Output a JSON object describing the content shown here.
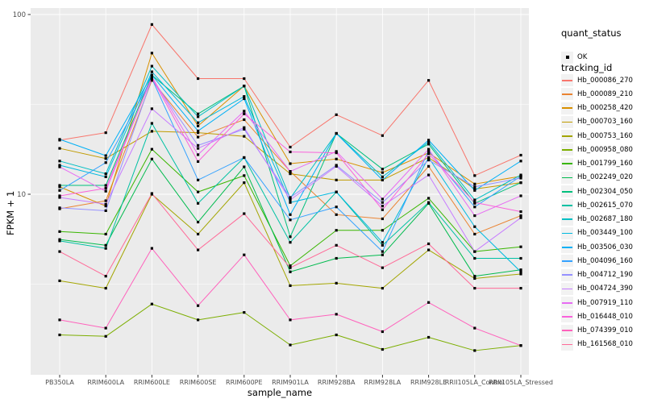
{
  "figure": {
    "background": "#FFFFFF",
    "panel_background": "#EBEBEB",
    "grid_color": "#FFFFFF",
    "axis_text_color": "#4D4D4D",
    "tick_color": "#333333",
    "ylabel": "FPKM + 1",
    "xlabel": "sample_name"
  },
  "legend": {
    "quant_title": "quant_status",
    "quant_items": [
      {
        "label": "OK",
        "marker": "black-square-point"
      }
    ],
    "tracking_title": "tracking_id"
  },
  "chart_data": {
    "type": "line",
    "title": "",
    "xlabel": "sample_name",
    "ylabel": "FPKM + 1",
    "yscale": "log10",
    "ylim": [
      1,
      110
    ],
    "y_ticks": [
      100,
      10
    ],
    "y_minor_ticks": [
      31.62,
      3.162
    ],
    "grid": true,
    "legend_position": "right",
    "marker": "small-black-square",
    "quant_status": "OK",
    "categories": [
      "PB350LA",
      "RRIM600LA",
      "RRIM600LE",
      "RRIM600SE",
      "RRIM600PE",
      "RRIM901LA",
      "RRIM928BA",
      "RRIM928LA",
      "RRIM928LE",
      "RRII105LA_Control",
      "RRII105LA_Stressed"
    ],
    "series": [
      {
        "name": "Hb_000086_270",
        "color": "#F8766D",
        "values": [
          20,
          22,
          88,
          44,
          44,
          18.3,
          27.7,
          21.2,
          43,
          12.7,
          16.5
        ]
      },
      {
        "name": "Hb_000089_210",
        "color": "#EA8331",
        "values": [
          8.3,
          9.2,
          43,
          20.8,
          26,
          13.4,
          7.7,
          7.3,
          14.3,
          6.0,
          7.6
        ]
      },
      {
        "name": "Hb_000258_420",
        "color": "#D89000",
        "values": [
          11,
          8.6,
          61,
          24,
          40,
          14.8,
          15.7,
          13.2,
          17,
          11.4,
          12.6
        ]
      },
      {
        "name": "Hb_000703_160",
        "color": "#C09B00",
        "values": [
          18,
          15.8,
          22.4,
          22,
          21,
          13.0,
          12.0,
          12.0,
          16,
          10.7,
          11.6
        ]
      },
      {
        "name": "Hb_000753_160",
        "color": "#A3A500",
        "values": [
          3.3,
          3.0,
          10,
          6.0,
          11.6,
          3.1,
          3.2,
          3.0,
          4.9,
          3.4,
          3.6
        ]
      },
      {
        "name": "Hb_000958_080",
        "color": "#7CAE00",
        "values": [
          1.65,
          1.62,
          2.45,
          2.0,
          2.2,
          1.45,
          1.65,
          1.37,
          1.6,
          1.35,
          1.44
        ]
      },
      {
        "name": "Hb_001799_160",
        "color": "#39B600",
        "values": [
          6.2,
          6.0,
          17.8,
          10.3,
          12.7,
          4.0,
          6.3,
          6.3,
          9.5,
          4.8,
          5.1
        ]
      },
      {
        "name": "Hb_002249_020",
        "color": "#00BB4E",
        "values": [
          5.6,
          5.2,
          15.7,
          7.0,
          14.2,
          3.7,
          4.4,
          4.6,
          8.9,
          3.5,
          3.8
        ]
      },
      {
        "name": "Hb_002304_050",
        "color": "#00BF7D",
        "values": [
          11.2,
          11.2,
          46,
          28,
          40,
          5.8,
          21.8,
          13.8,
          19,
          8.9,
          11.6
        ]
      },
      {
        "name": "Hb_002615_070",
        "color": "#00C1A3",
        "values": [
          5.5,
          5.0,
          24.8,
          8.9,
          16,
          5.4,
          10.3,
          5.2,
          9.0,
          4.4,
          4.4
        ]
      },
      {
        "name": "Hb_002687_180",
        "color": "#00BFC4",
        "values": [
          15.3,
          13.0,
          51.6,
          27,
          40,
          9.5,
          21.8,
          12.5,
          19.5,
          9.3,
          12.8
        ]
      },
      {
        "name": "Hb_003449_100",
        "color": "#00BAE0",
        "values": [
          14.5,
          12.5,
          48,
          25,
          35,
          9.0,
          10.3,
          5.4,
          16,
          6.6,
          3.7
        ]
      },
      {
        "name": "Hb_003506_030",
        "color": "#00B0F6",
        "values": [
          20.2,
          16.4,
          46,
          22.5,
          34,
          7.7,
          21.8,
          12.0,
          20,
          10.5,
          15.3
        ]
      },
      {
        "name": "Hb_004096_160",
        "color": "#35A2FF",
        "values": [
          10.5,
          15.0,
          44,
          12.0,
          16,
          7.2,
          8.5,
          4.8,
          17.5,
          8.5,
          12.6
        ]
      },
      {
        "name": "Hb_004712_190",
        "color": "#9590FF",
        "values": [
          8.4,
          8.1,
          44,
          18.7,
          23,
          9.6,
          14.5,
          9.0,
          15.5,
          11.0,
          12.3
        ]
      },
      {
        "name": "Hb_004724_390",
        "color": "#C77CFF",
        "values": [
          9.6,
          8.8,
          29.9,
          18.0,
          23.5,
          9.3,
          14.3,
          8.6,
          12.8,
          4.8,
          7.4
        ]
      },
      {
        "name": "Hb_007919_110",
        "color": "#E76BF3",
        "values": [
          14.2,
          10.4,
          45,
          16.6,
          29,
          13.4,
          17.3,
          9.4,
          17.8,
          7.6,
          9.8
        ]
      },
      {
        "name": "Hb_016448_010",
        "color": "#FA62DB",
        "values": [
          9.8,
          10.8,
          44.5,
          15.2,
          28,
          17.2,
          17.0,
          8.2,
          16.8,
          9.0,
          8.0
        ]
      },
      {
        "name": "Hb_074399_010",
        "color": "#FF62BC",
        "values": [
          2.0,
          1.8,
          5.0,
          2.4,
          4.6,
          2.0,
          2.15,
          1.72,
          2.5,
          1.8,
          1.44
        ]
      },
      {
        "name": "Hb_161568_010",
        "color": "#FF6A98",
        "values": [
          4.8,
          3.5,
          10.1,
          4.9,
          7.8,
          3.9,
          5.2,
          3.9,
          5.3,
          3.0,
          3.0
        ]
      }
    ]
  }
}
